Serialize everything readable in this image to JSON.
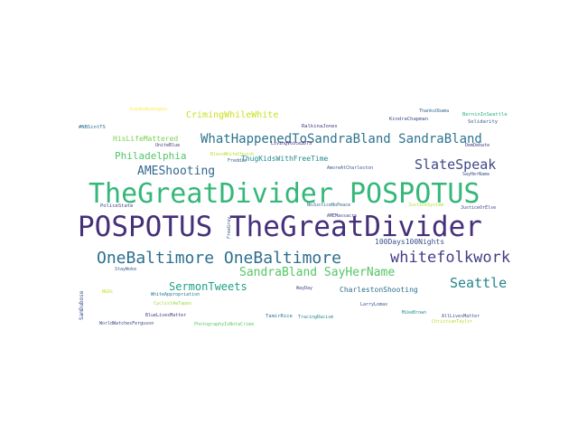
{
  "words": [
    {
      "text": "POSPOTUS TheGreatDivider",
      "color": "#46307a"
    },
    {
      "text": "TheGreatDivider POSPOTUS",
      "color": "#35b779"
    },
    {
      "text": "OneBaltimore OneBaltimore",
      "color": "#2d6f8e"
    },
    {
      "text": "whitefolkwork",
      "color": "#433e85"
    },
    {
      "text": "WhatHappenedToSandraBland SandraBland",
      "color": "#2c738e"
    },
    {
      "text": "SlateSpeak",
      "color": "#3f4889"
    },
    {
      "text": "Seattle",
      "color": "#25858e"
    },
    {
      "text": "SandraBland SayHerName",
      "color": "#56c667"
    },
    {
      "text": "AMEShooting",
      "color": "#31688e"
    },
    {
      "text": "SermonTweets",
      "color": "#1fa187"
    },
    {
      "text": "Philadelphia",
      "color": "#52c569"
    },
    {
      "text": "CrimingWhileWhite",
      "color": "#c8e020"
    },
    {
      "text": "HisLifeMattered",
      "color": "#7ad151"
    },
    {
      "text": "ThugKidsWithFreeTime",
      "color": "#238a8d"
    },
    {
      "text": "CharlestonShooting",
      "color": "#2e6e8e"
    },
    {
      "text": "100Days100Nights",
      "color": "#3b528b"
    },
    {
      "text": "KindraChapman",
      "color": "#3e4a89"
    },
    {
      "text": "BerninInSeattle",
      "color": "#2ab07f"
    },
    {
      "text": "ThanksObama",
      "color": "#31688e"
    },
    {
      "text": "Solidarity",
      "color": "#3a548c"
    },
    {
      "text": "RalkinaJones",
      "color": "#443983"
    },
    {
      "text": "#NBSintTS",
      "color": "#2d708e"
    },
    {
      "text": "UniteBlue",
      "color": "#46327e"
    },
    {
      "text": "LivingVoice2DTS",
      "color": "#482475"
    },
    {
      "text": "DemDebate",
      "color": "#424086"
    },
    {
      "text": "BlessWhiteChurch",
      "color": "#b5de2b"
    },
    {
      "text": "Freddie",
      "color": "#365c8d"
    },
    {
      "text": "AmoreAtCharleston",
      "color": "#375a8c"
    },
    {
      "text": "SayHerName",
      "color": "#3b528b"
    },
    {
      "text": "PoliceState",
      "color": "#424186"
    },
    {
      "text": "NoJusticeNoPeace",
      "color": "#2f6b8e"
    },
    {
      "text": "JusticeSystem",
      "color": "#addc30"
    },
    {
      "text": "JusticeOrElse",
      "color": "#3f4788"
    },
    {
      "text": "AMEMassacre",
      "color": "#424086"
    },
    {
      "text": "StayWoke",
      "color": "#365d8d"
    },
    {
      "text": "WhiteAppropriation",
      "color": "#2a788e"
    },
    {
      "text": "CyclistAwTapes",
      "color": "#9bd93c"
    },
    {
      "text": "WayDay",
      "color": "#3e4c8a"
    },
    {
      "text": "LarryLomax",
      "color": "#3b518b"
    },
    {
      "text": "TamirRice",
      "color": "#2b748e"
    },
    {
      "text": "TracingRacism",
      "color": "#23898e"
    },
    {
      "text": "MikeBrown",
      "color": "#228d8d"
    },
    {
      "text": "AllLivesMatter",
      "color": "#39558c"
    },
    {
      "text": "ChristianTaylor",
      "color": "#b8de29"
    },
    {
      "text": "BlueLivesMatter",
      "color": "#443b84"
    },
    {
      "text": "WorldWatchesFerguson",
      "color": "#3e4989"
    },
    {
      "text": "PhotographyIsNotaCrime",
      "color": "#5ec962"
    },
    {
      "text": "SamDubose",
      "color": "#3a538b"
    },
    {
      "text": "FreeGray",
      "color": "#38588c"
    },
    {
      "text": "NGOs",
      "color": "#c2df23"
    },
    {
      "text": "ScandalWashington",
      "color": "#fde725"
    }
  ]
}
